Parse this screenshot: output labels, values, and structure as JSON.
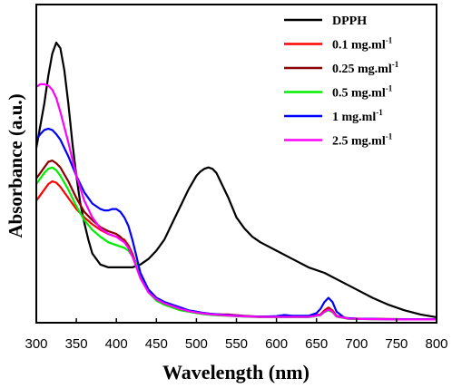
{
  "chart_data": {
    "type": "line",
    "xlabel": "Wavelength (nm)",
    "ylabel": "Absorbance (a.u.)",
    "xlim": [
      300,
      800
    ],
    "ylim": [
      0,
      1
    ],
    "x_ticks": [
      300,
      350,
      400,
      450,
      500,
      550,
      600,
      650,
      700,
      750,
      800
    ],
    "y_ticks_shown": false,
    "grid": false,
    "legend_position": "top-right",
    "series": [
      {
        "name": "DPPH",
        "color": "#000000",
        "points": [
          [
            300,
            0.62
          ],
          [
            305,
            0.7
          ],
          [
            310,
            0.78
          ],
          [
            315,
            0.88
          ],
          [
            320,
            0.96
          ],
          [
            325,
            1.0
          ],
          [
            330,
            0.98
          ],
          [
            335,
            0.9
          ],
          [
            340,
            0.78
          ],
          [
            345,
            0.64
          ],
          [
            350,
            0.52
          ],
          [
            355,
            0.42
          ],
          [
            360,
            0.35
          ],
          [
            365,
            0.29
          ],
          [
            370,
            0.24
          ],
          [
            380,
            0.2
          ],
          [
            390,
            0.19
          ],
          [
            400,
            0.19
          ],
          [
            410,
            0.19
          ],
          [
            420,
            0.19
          ],
          [
            430,
            0.2
          ],
          [
            440,
            0.22
          ],
          [
            450,
            0.25
          ],
          [
            460,
            0.29
          ],
          [
            470,
            0.35
          ],
          [
            480,
            0.41
          ],
          [
            490,
            0.47
          ],
          [
            500,
            0.52
          ],
          [
            505,
            0.535
          ],
          [
            510,
            0.545
          ],
          [
            515,
            0.55
          ],
          [
            520,
            0.545
          ],
          [
            525,
            0.53
          ],
          [
            530,
            0.5
          ],
          [
            540,
            0.44
          ],
          [
            550,
            0.37
          ],
          [
            560,
            0.33
          ],
          [
            570,
            0.3
          ],
          [
            580,
            0.28
          ],
          [
            600,
            0.25
          ],
          [
            620,
            0.22
          ],
          [
            640,
            0.19
          ],
          [
            660,
            0.17
          ],
          [
            680,
            0.14
          ],
          [
            700,
            0.11
          ],
          [
            720,
            0.08
          ],
          [
            740,
            0.055
          ],
          [
            760,
            0.035
          ],
          [
            780,
            0.02
          ],
          [
            800,
            0.01
          ]
        ]
      },
      {
        "name": "0.1 mg.ml",
        "color": "#ff0000",
        "points": [
          [
            300,
            0.43
          ],
          [
            305,
            0.45
          ],
          [
            310,
            0.47
          ],
          [
            315,
            0.49
          ],
          [
            320,
            0.5
          ],
          [
            325,
            0.495
          ],
          [
            330,
            0.48
          ],
          [
            340,
            0.44
          ],
          [
            350,
            0.4
          ],
          [
            360,
            0.37
          ],
          [
            370,
            0.345
          ],
          [
            380,
            0.325
          ],
          [
            390,
            0.31
          ],
          [
            400,
            0.3
          ],
          [
            405,
            0.295
          ],
          [
            410,
            0.29
          ],
          [
            415,
            0.27
          ],
          [
            420,
            0.24
          ],
          [
            425,
            0.2
          ],
          [
            430,
            0.16
          ],
          [
            440,
            0.11
          ],
          [
            450,
            0.08
          ],
          [
            460,
            0.065
          ],
          [
            470,
            0.055
          ],
          [
            480,
            0.045
          ],
          [
            490,
            0.035
          ],
          [
            500,
            0.03
          ],
          [
            510,
            0.025
          ],
          [
            520,
            0.022
          ],
          [
            530,
            0.02
          ],
          [
            540,
            0.02
          ],
          [
            560,
            0.015
          ],
          [
            580,
            0.012
          ],
          [
            600,
            0.012
          ],
          [
            620,
            0.012
          ],
          [
            640,
            0.013
          ],
          [
            655,
            0.02
          ],
          [
            660,
            0.035
          ],
          [
            665,
            0.045
          ],
          [
            670,
            0.035
          ],
          [
            675,
            0.015
          ],
          [
            690,
            0.006
          ],
          [
            720,
            0.004
          ],
          [
            760,
            0.003
          ],
          [
            800,
            0.003
          ]
        ]
      },
      {
        "name": "0.25 mg.ml",
        "color": "#8b0000",
        "points": [
          [
            300,
            0.51
          ],
          [
            305,
            0.53
          ],
          [
            310,
            0.55
          ],
          [
            315,
            0.57
          ],
          [
            320,
            0.575
          ],
          [
            325,
            0.565
          ],
          [
            330,
            0.55
          ],
          [
            340,
            0.5
          ],
          [
            350,
            0.44
          ],
          [
            360,
            0.39
          ],
          [
            370,
            0.36
          ],
          [
            380,
            0.335
          ],
          [
            390,
            0.32
          ],
          [
            400,
            0.31
          ],
          [
            405,
            0.3
          ],
          [
            410,
            0.285
          ],
          [
            415,
            0.265
          ],
          [
            420,
            0.235
          ],
          [
            425,
            0.2
          ],
          [
            430,
            0.16
          ],
          [
            440,
            0.11
          ],
          [
            450,
            0.075
          ],
          [
            460,
            0.06
          ],
          [
            470,
            0.05
          ],
          [
            480,
            0.04
          ],
          [
            490,
            0.032
          ],
          [
            500,
            0.027
          ],
          [
            510,
            0.023
          ],
          [
            520,
            0.02
          ],
          [
            540,
            0.017
          ],
          [
            560,
            0.014
          ],
          [
            580,
            0.012
          ],
          [
            600,
            0.012
          ],
          [
            620,
            0.012
          ],
          [
            640,
            0.012
          ],
          [
            655,
            0.02
          ],
          [
            660,
            0.032
          ],
          [
            665,
            0.042
          ],
          [
            670,
            0.032
          ],
          [
            675,
            0.014
          ],
          [
            690,
            0.005
          ],
          [
            720,
            0.004
          ],
          [
            760,
            0.003
          ],
          [
            800,
            0.003
          ]
        ]
      },
      {
        "name": "0.5 mg.ml",
        "color": "#00ee00",
        "points": [
          [
            300,
            0.49
          ],
          [
            305,
            0.51
          ],
          [
            310,
            0.53
          ],
          [
            315,
            0.545
          ],
          [
            320,
            0.55
          ],
          [
            325,
            0.54
          ],
          [
            330,
            0.52
          ],
          [
            340,
            0.47
          ],
          [
            350,
            0.41
          ],
          [
            360,
            0.36
          ],
          [
            370,
            0.325
          ],
          [
            380,
            0.3
          ],
          [
            390,
            0.28
          ],
          [
            400,
            0.27
          ],
          [
            405,
            0.265
          ],
          [
            410,
            0.26
          ],
          [
            415,
            0.25
          ],
          [
            420,
            0.23
          ],
          [
            425,
            0.2
          ],
          [
            430,
            0.16
          ],
          [
            440,
            0.1
          ],
          [
            450,
            0.07
          ],
          [
            460,
            0.055
          ],
          [
            470,
            0.045
          ],
          [
            480,
            0.035
          ],
          [
            490,
            0.03
          ],
          [
            500,
            0.025
          ],
          [
            510,
            0.021
          ],
          [
            520,
            0.018
          ],
          [
            540,
            0.015
          ],
          [
            560,
            0.012
          ],
          [
            580,
            0.01
          ],
          [
            600,
            0.01
          ],
          [
            620,
            0.01
          ],
          [
            640,
            0.01
          ],
          [
            655,
            0.017
          ],
          [
            660,
            0.028
          ],
          [
            665,
            0.035
          ],
          [
            670,
            0.028
          ],
          [
            675,
            0.012
          ],
          [
            690,
            0.004
          ],
          [
            720,
            0.003
          ],
          [
            760,
            0.002
          ],
          [
            800,
            0.002
          ]
        ]
      },
      {
        "name": "1 mg.ml",
        "color": "#0000ff",
        "points": [
          [
            300,
            0.65
          ],
          [
            305,
            0.67
          ],
          [
            310,
            0.685
          ],
          [
            315,
            0.69
          ],
          [
            320,
            0.685
          ],
          [
            325,
            0.67
          ],
          [
            330,
            0.65
          ],
          [
            340,
            0.59
          ],
          [
            350,
            0.52
          ],
          [
            360,
            0.46
          ],
          [
            370,
            0.42
          ],
          [
            380,
            0.4
          ],
          [
            385,
            0.395
          ],
          [
            390,
            0.395
          ],
          [
            395,
            0.4
          ],
          [
            400,
            0.4
          ],
          [
            405,
            0.39
          ],
          [
            410,
            0.37
          ],
          [
            415,
            0.34
          ],
          [
            420,
            0.29
          ],
          [
            425,
            0.23
          ],
          [
            430,
            0.17
          ],
          [
            440,
            0.11
          ],
          [
            450,
            0.08
          ],
          [
            460,
            0.065
          ],
          [
            470,
            0.055
          ],
          [
            480,
            0.045
          ],
          [
            490,
            0.035
          ],
          [
            500,
            0.03
          ],
          [
            510,
            0.025
          ],
          [
            520,
            0.022
          ],
          [
            540,
            0.018
          ],
          [
            560,
            0.014
          ],
          [
            580,
            0.012
          ],
          [
            600,
            0.014
          ],
          [
            610,
            0.018
          ],
          [
            620,
            0.015
          ],
          [
            640,
            0.015
          ],
          [
            650,
            0.025
          ],
          [
            655,
            0.04
          ],
          [
            660,
            0.065
          ],
          [
            665,
            0.08
          ],
          [
            670,
            0.065
          ],
          [
            675,
            0.03
          ],
          [
            685,
            0.008
          ],
          [
            700,
            0.005
          ],
          [
            740,
            0.003
          ],
          [
            800,
            0.003
          ]
        ]
      },
      {
        "name": "2.5 mg.ml",
        "color": "#ff00ff",
        "points": [
          [
            300,
            0.84
          ],
          [
            305,
            0.85
          ],
          [
            310,
            0.85
          ],
          [
            315,
            0.845
          ],
          [
            320,
            0.83
          ],
          [
            325,
            0.8
          ],
          [
            330,
            0.75
          ],
          [
            340,
            0.64
          ],
          [
            350,
            0.52
          ],
          [
            360,
            0.43
          ],
          [
            370,
            0.37
          ],
          [
            380,
            0.33
          ],
          [
            390,
            0.31
          ],
          [
            400,
            0.3
          ],
          [
            405,
            0.29
          ],
          [
            410,
            0.28
          ],
          [
            415,
            0.26
          ],
          [
            420,
            0.23
          ],
          [
            425,
            0.19
          ],
          [
            430,
            0.15
          ],
          [
            440,
            0.1
          ],
          [
            450,
            0.075
          ],
          [
            460,
            0.06
          ],
          [
            470,
            0.05
          ],
          [
            480,
            0.04
          ],
          [
            490,
            0.032
          ],
          [
            500,
            0.027
          ],
          [
            510,
            0.023
          ],
          [
            520,
            0.02
          ],
          [
            540,
            0.016
          ],
          [
            560,
            0.013
          ],
          [
            580,
            0.011
          ],
          [
            600,
            0.011
          ],
          [
            620,
            0.011
          ],
          [
            640,
            0.011
          ],
          [
            655,
            0.018
          ],
          [
            660,
            0.03
          ],
          [
            665,
            0.038
          ],
          [
            670,
            0.03
          ],
          [
            675,
            0.013
          ],
          [
            690,
            0.005
          ],
          [
            720,
            0.003
          ],
          [
            760,
            0.002
          ],
          [
            800,
            0.002
          ]
        ]
      }
    ]
  }
}
